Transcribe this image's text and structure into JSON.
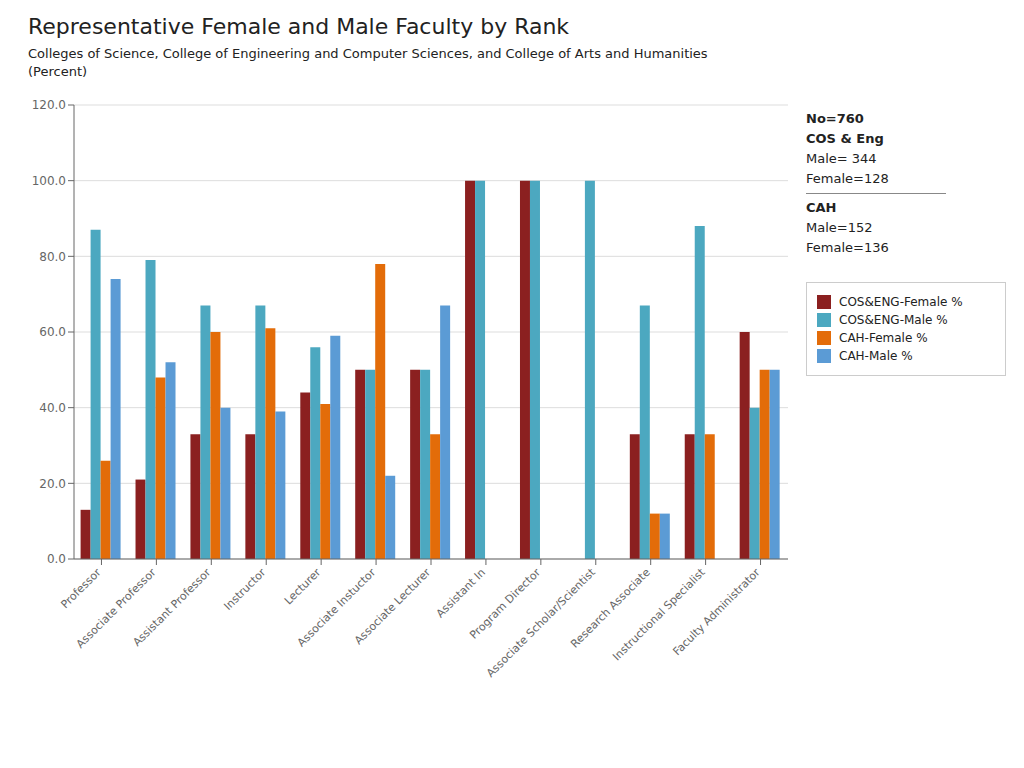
{
  "chart_data": {
    "type": "bar",
    "title": "Representative Female and Male Faculty by Rank",
    "subtitle": "Colleges of Science, College of Engineering and Computer Sciences, and College of Arts and Humanities\n(Percent)",
    "categories": [
      "Professor",
      "Associate Professor",
      "Assistant Professor",
      "Instructor",
      "Lecturer",
      "Associate Instuctor",
      "Associate Lecturer",
      "Assistant In",
      "Program Director",
      "Associate Scholar/Scientist",
      "Research Associate",
      "Instructional Specialist",
      "Faculty Administrator"
    ],
    "series": [
      {
        "name": "COS&ENG-Female %",
        "color": "#8B2020",
        "values": [
          13.0,
          21.0,
          33.0,
          33.0,
          44.0,
          50.0,
          50.0,
          100.0,
          100.0,
          0.0,
          33.0,
          33.0,
          60.0
        ]
      },
      {
        "name": "COS&ENG-Male %",
        "color": "#4CA8C0",
        "values": [
          87.0,
          79.0,
          67.0,
          67.0,
          56.0,
          50.0,
          50.0,
          100.0,
          100.0,
          100.0,
          67.0,
          88.0,
          40.0
        ]
      },
      {
        "name": "CAH-Female %",
        "color": "#E36C09",
        "values": [
          26.0,
          48.0,
          60.0,
          61.0,
          41.0,
          78.0,
          33.0,
          0.0,
          0.0,
          0.0,
          12.0,
          33.0,
          50.0
        ]
      },
      {
        "name": "CAH-Male %",
        "color": "#5B9BD5",
        "values": [
          74.0,
          52.0,
          40.0,
          39.0,
          59.0,
          22.0,
          67.0,
          0.0,
          0.0,
          0.0,
          12.0,
          0.0,
          50.0
        ]
      }
    ],
    "ylim": [
      0,
      120
    ],
    "yticks": [
      {
        "value": 0,
        "label": "0.0"
      },
      {
        "value": 20,
        "label": "20.0"
      },
      {
        "value": 40,
        "label": "40.0"
      },
      {
        "value": 60,
        "label": "60.0"
      },
      {
        "value": 80,
        "label": "80.0"
      },
      {
        "value": 100,
        "label": "100.0"
      },
      {
        "value": 120,
        "label": "120.0"
      }
    ],
    "grid": true,
    "legend": "right",
    "annotations": [
      "No=760",
      "COS & Eng",
      "Male= 344",
      "Female=128",
      "CAH",
      "Male=152",
      "Female=136"
    ]
  }
}
